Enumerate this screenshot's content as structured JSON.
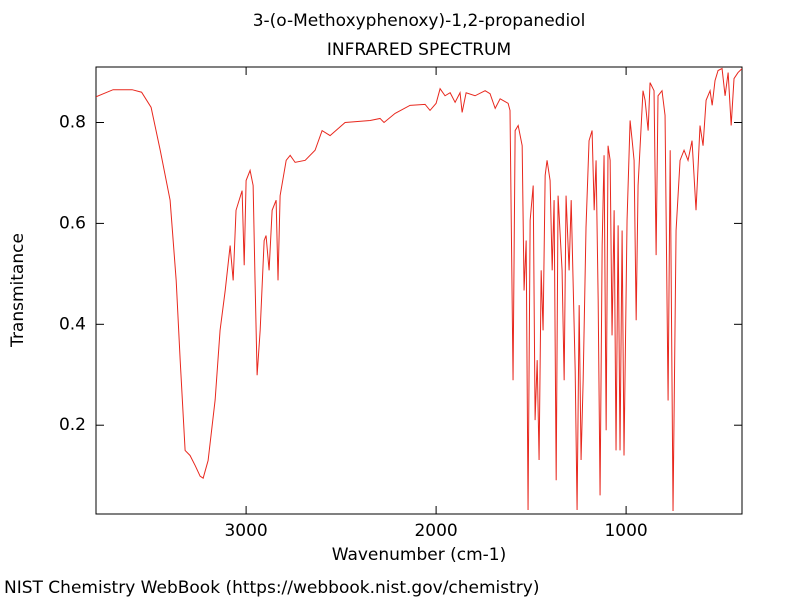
{
  "chart_data": {
    "type": "line",
    "title": "3-(o-Methoxyphenoxy)-1,2-propanediol",
    "subtitle": "INFRARED SPECTRUM",
    "x_label": "Wavenumber (cm-1)",
    "y_label": "Transmitance",
    "footer": "NIST Chemistry WebBook (https://webbook.nist.gov/chemistry)",
    "color": "#e8281e",
    "xlim": [
      3790,
      390
    ],
    "ylim": [
      0.024,
      0.91
    ],
    "xticks": [
      3000,
      2000,
      1000
    ],
    "yticks": [
      0.2,
      0.4,
      0.6,
      0.8
    ],
    "x": [
      3790,
      3700,
      3600,
      3550,
      3500,
      3452,
      3400,
      3368,
      3347,
      3321,
      3295,
      3268,
      3242,
      3226,
      3200,
      3163,
      3137,
      3110,
      3084,
      3068,
      3053,
      3021,
      3010,
      3000,
      2979,
      2963,
      2953,
      2942,
      2926,
      2905,
      2895,
      2879,
      2863,
      2842,
      2832,
      2821,
      2789,
      2768,
      2742,
      2689,
      2637,
      2600,
      2558,
      2479,
      2347,
      2295,
      2274,
      2216,
      2137,
      2058,
      2032,
      2000,
      1979,
      1953,
      1926,
      1900,
      1874,
      1863,
      1842,
      1795,
      1742,
      1716,
      1689,
      1663,
      1621,
      1611,
      1595,
      1584,
      1568,
      1547,
      1537,
      1526,
      1516,
      1505,
      1489,
      1479,
      1468,
      1458,
      1447,
      1437,
      1426,
      1416,
      1400,
      1389,
      1379,
      1368,
      1358,
      1337,
      1326,
      1316,
      1300,
      1289,
      1268,
      1258,
      1247,
      1237,
      1226,
      1211,
      1195,
      1179,
      1168,
      1158,
      1147,
      1137,
      1126,
      1116,
      1105,
      1095,
      1084,
      1074,
      1063,
      1053,
      1042,
      1032,
      1021,
      1011,
      995,
      979,
      968,
      958,
      947,
      937,
      911,
      900,
      884,
      874,
      853,
      842,
      832,
      811,
      795,
      779,
      768,
      753,
      737,
      716,
      695,
      674,
      653,
      632,
      611,
      595,
      579,
      558,
      547,
      532,
      516,
      495,
      479,
      463,
      447,
      432,
      411,
      389
    ],
    "values": [
      0.851,
      0.865,
      0.865,
      0.86,
      0.83,
      0.745,
      0.646,
      0.487,
      0.329,
      0.15,
      0.14,
      0.12,
      0.099,
      0.095,
      0.13,
      0.25,
      0.388,
      0.467,
      0.556,
      0.487,
      0.626,
      0.665,
      0.517,
      0.685,
      0.705,
      0.675,
      0.487,
      0.299,
      0.388,
      0.566,
      0.576,
      0.507,
      0.626,
      0.646,
      0.487,
      0.655,
      0.725,
      0.735,
      0.721,
      0.725,
      0.745,
      0.784,
      0.774,
      0.8,
      0.804,
      0.808,
      0.8,
      0.818,
      0.834,
      0.836,
      0.824,
      0.838,
      0.867,
      0.853,
      0.859,
      0.84,
      0.859,
      0.82,
      0.859,
      0.853,
      0.863,
      0.857,
      0.828,
      0.847,
      0.838,
      0.824,
      0.289,
      0.784,
      0.794,
      0.754,
      0.467,
      0.566,
      0.032,
      0.606,
      0.675,
      0.21,
      0.329,
      0.131,
      0.507,
      0.388,
      0.695,
      0.725,
      0.685,
      0.507,
      0.646,
      0.091,
      0.655,
      0.507,
      0.289,
      0.655,
      0.507,
      0.646,
      0.309,
      0.032,
      0.438,
      0.131,
      0.289,
      0.592,
      0.764,
      0.784,
      0.626,
      0.725,
      0.447,
      0.061,
      0.556,
      0.735,
      0.19,
      0.754,
      0.725,
      0.378,
      0.626,
      0.15,
      0.596,
      0.15,
      0.586,
      0.14,
      0.606,
      0.804,
      0.764,
      0.725,
      0.408,
      0.675,
      0.863,
      0.844,
      0.784,
      0.879,
      0.863,
      0.537,
      0.853,
      0.863,
      0.814,
      0.249,
      0.745,
      0.03,
      0.586,
      0.725,
      0.745,
      0.725,
      0.764,
      0.626,
      0.794,
      0.754,
      0.844,
      0.863,
      0.834,
      0.883,
      0.903,
      0.907,
      0.853,
      0.899,
      0.794,
      0.887,
      0.899,
      0.907
    ]
  }
}
